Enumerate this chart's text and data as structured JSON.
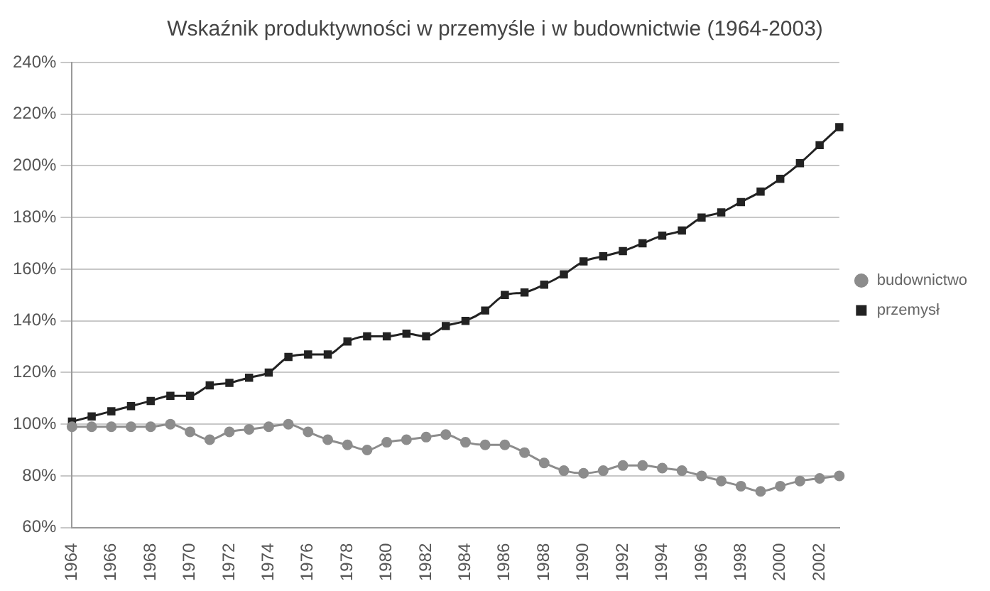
{
  "chart_data": {
    "type": "line",
    "title": "Wskaźnik produktywności w przemyśle i w budownictwie (1964-2003)",
    "categories": [
      "1964",
      null,
      "1966",
      null,
      "1968",
      null,
      "1970",
      null,
      "1972",
      null,
      "1974",
      null,
      "1976",
      null,
      "1978",
      null,
      "1980",
      null,
      "1982",
      null,
      "1984",
      null,
      "1986",
      null,
      "1988",
      null,
      "1990",
      null,
      "1992",
      null,
      "1994",
      null,
      "1996",
      null,
      "1998",
      null,
      "2000",
      null,
      "2002",
      null
    ],
    "series": [
      {
        "name": "budownictwo",
        "color": "#8c8c8c",
        "marker": "circle",
        "values": [
          99,
          99,
          99,
          99,
          99,
          100,
          97,
          94,
          97,
          98,
          99,
          100,
          97,
          94,
          92,
          90,
          93,
          94,
          95,
          96,
          93,
          92,
          92,
          89,
          85,
          82,
          81,
          82,
          84,
          84,
          83,
          82,
          80,
          78,
          76,
          74,
          76,
          78,
          79,
          80
        ]
      },
      {
        "name": "przemysł",
        "color": "#222222",
        "marker": "square",
        "values": [
          101,
          103,
          105,
          107,
          109,
          111,
          111,
          115,
          116,
          118,
          120,
          126,
          127,
          127,
          132,
          134,
          134,
          135,
          134,
          138,
          140,
          144,
          150,
          151,
          154,
          158,
          163,
          165,
          167,
          170,
          173,
          175,
          180,
          182,
          186,
          190,
          195,
          201,
          208,
          215
        ]
      }
    ],
    "ylim": [
      60,
      240
    ],
    "yticks": [
      {
        "value": 60,
        "label": "60%"
      },
      {
        "value": 80,
        "label": "80%"
      },
      {
        "value": 100,
        "label": "100%"
      },
      {
        "value": 120,
        "label": "120%"
      },
      {
        "value": 140,
        "label": "140%"
      },
      {
        "value": 160,
        "label": "160%"
      },
      {
        "value": 180,
        "label": "180%"
      },
      {
        "value": 200,
        "label": "200%"
      },
      {
        "value": 220,
        "label": "220%"
      },
      {
        "value": 240,
        "label": "240%"
      }
    ],
    "grid": "y",
    "legend": "right",
    "line_style": "solid"
  }
}
